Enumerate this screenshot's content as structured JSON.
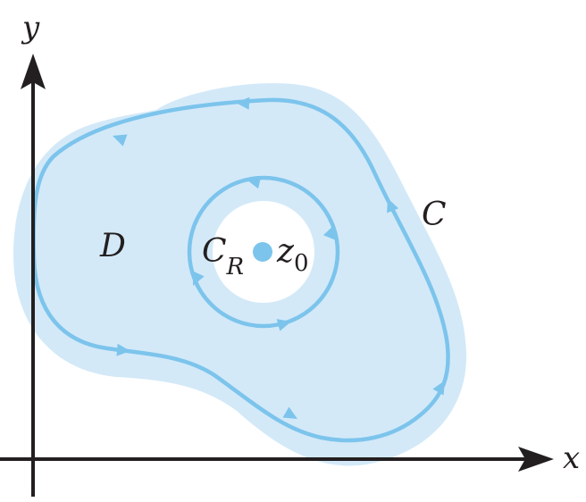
{
  "axes": {
    "x_label": "x",
    "y_label": "y"
  },
  "labels": {
    "region": "D",
    "outer_contour": "C",
    "inner_contour_main": "C",
    "inner_contour_sub": "R",
    "point_main": "z",
    "point_sub": "0"
  },
  "colors": {
    "region_fill": "#d3e9f8",
    "contour": "#7cc4ec",
    "point": "#7cc4ec",
    "axis": "#231f20"
  }
}
